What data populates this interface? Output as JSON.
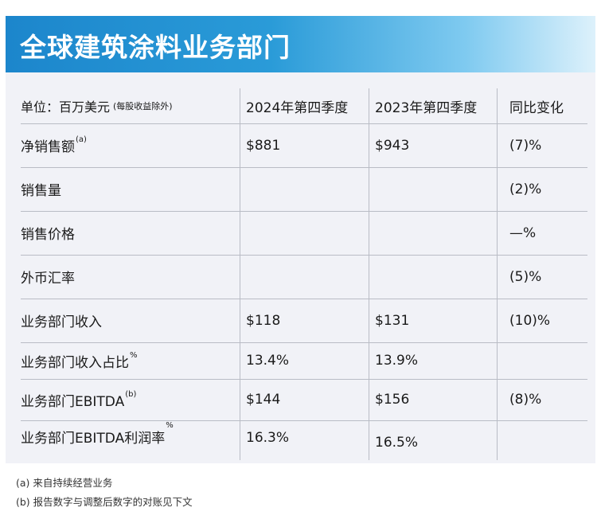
{
  "banner": {
    "title": "全球建筑涂料业务部门"
  },
  "header": {
    "label": "单位：百万美元",
    "label_note": "(每股收益除外)",
    "col1": "2024年第四季度",
    "col2": "2023年第四季度",
    "col3": "同比变化"
  },
  "rows": [
    {
      "label": "净销售额",
      "sup": "(a)",
      "c1": "$881",
      "c2": "$943",
      "c3": "(7)%"
    },
    {
      "label": "销售量",
      "sup": "",
      "c1": "",
      "c2": "",
      "c3": "(2)%"
    },
    {
      "label": "销售价格",
      "sup": "",
      "c1": "",
      "c2": "",
      "c3": "—%"
    },
    {
      "label": "外币汇率",
      "sup": "",
      "c1": "",
      "c2": "",
      "c3": "(5)%"
    },
    {
      "label": "业务部门收入",
      "sup": "",
      "c1": "$118",
      "c2": "$131",
      "c3": "(10)%"
    },
    {
      "label": "业务部门收入占比",
      "sup": "%",
      "c1": "13.4%",
      "c2": "13.9%",
      "c3": ""
    },
    {
      "label": "业务部门EBITDA",
      "sup": "(b)",
      "c1": "$144",
      "c2": "$156",
      "c3": "(8)%"
    },
    {
      "label": "业务部门EBITDA利润率",
      "sup": "%",
      "c1": "16.3%",
      "c2": "16.5%",
      "c3": ""
    }
  ],
  "footnotes": [
    "(a) 来自持续经营业务",
    "(b) 报告数字与调整后数字的对账见下文"
  ],
  "colors": {
    "banner_start": "#1c86cc",
    "banner_end": "#ddf1fb",
    "table_bg": "#f1f2f7",
    "rule": "#b9bcc5"
  }
}
